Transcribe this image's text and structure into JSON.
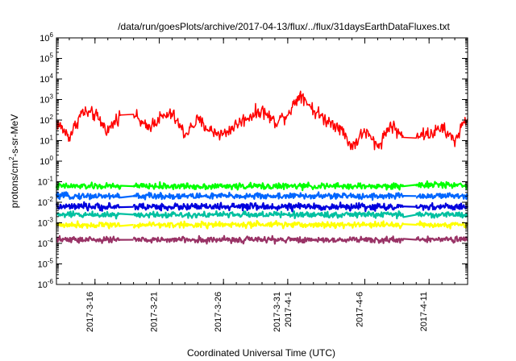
{
  "chart_data": {
    "type": "line",
    "title": "/data/run/goesPlots/archive/2017-04-13/flux/../flux/31daysEarthDataFluxes.txt",
    "xlabel": "Coordinated Universal Time (UTC)",
    "ylabel": "protons/cm²-s-sr-MeV",
    "yscale": "log",
    "ylim": [
      1e-06,
      1000000.0
    ],
    "xlim": [
      "2017-03-13",
      "2017-04-14"
    ],
    "grid": false,
    "legend": "none",
    "x_ticks": [
      {
        "date": "2017-03-16",
        "label": [
          "2017-3-16"
        ]
      },
      {
        "date": "2017-03-21",
        "label": [
          "2017-3-21"
        ]
      },
      {
        "date": "2017-03-26",
        "label": [
          "2017-3-26"
        ]
      },
      {
        "date": "2017-03-31",
        "label": [
          "2017-3-31",
          "2017-4-1"
        ]
      },
      {
        "date": "2017-04-06",
        "label": [
          "2017-4-6"
        ]
      },
      {
        "date": "2017-04-11",
        "label": [
          "2017-4-11"
        ]
      }
    ],
    "y_ticks": [
      {
        "exp": -6,
        "label": "10-6"
      },
      {
        "exp": -5,
        "label": "10-5"
      },
      {
        "exp": -4,
        "label": "10-4"
      },
      {
        "exp": -3,
        "label": "10-3"
      },
      {
        "exp": -2,
        "label": "10-2"
      },
      {
        "exp": -1,
        "label": "10-1"
      },
      {
        "exp": 0,
        "label": "100"
      },
      {
        "exp": 1,
        "label": "101"
      },
      {
        "exp": 2,
        "label": "102"
      },
      {
        "exp": 3,
        "label": "103"
      },
      {
        "exp": 4,
        "label": "104"
      },
      {
        "exp": 5,
        "label": "105"
      },
      {
        "exp": 6,
        "label": "106"
      }
    ],
    "data_gaps": [
      {
        "start": "2017-03-18",
        "end": "2017-03-19"
      },
      {
        "start": "2017-04-09",
        "end": "2017-04-10"
      }
    ],
    "series": [
      {
        "color": "#ff0000",
        "x": [
          "2017-03-13",
          "2017-03-14",
          "2017-03-15",
          "2017-03-16",
          "2017-03-17",
          "2017-03-18",
          "2017-03-19",
          "2017-03-20",
          "2017-03-21",
          "2017-03-22",
          "2017-03-23",
          "2017-03-24",
          "2017-03-25",
          "2017-03-26",
          "2017-03-27",
          "2017-03-28",
          "2017-03-29",
          "2017-03-30",
          "2017-03-31",
          "2017-04-01",
          "2017-04-02",
          "2017-04-03",
          "2017-04-04",
          "2017-04-05",
          "2017-04-06",
          "2017-04-07",
          "2017-04-08",
          "2017-04-09",
          "2017-04-10",
          "2017-04-11",
          "2017-04-12",
          "2017-04-13",
          "2017-04-14"
        ],
        "values": [
          80,
          15,
          250,
          180,
          30,
          200,
          200,
          40,
          120,
          200,
          20,
          100,
          30,
          20,
          60,
          150,
          300,
          80,
          200,
          2000,
          300,
          100,
          50,
          5,
          30,
          5,
          60,
          15,
          20,
          20,
          40,
          10,
          150
        ]
      },
      {
        "color": "#00ff00",
        "x": [
          "2017-03-13",
          "2017-03-18",
          "2017-03-19",
          "2017-04-09",
          "2017-04-10",
          "2017-04-14"
        ],
        "values": [
          0.06,
          0.06,
          0.06,
          0.06,
          0.07,
          0.07
        ]
      },
      {
        "color": "#0066ff",
        "x": [
          "2017-03-13",
          "2017-03-18",
          "2017-03-19",
          "2017-04-09",
          "2017-04-10",
          "2017-04-14"
        ],
        "values": [
          0.02,
          0.02,
          0.02,
          0.02,
          0.02,
          0.02
        ]
      },
      {
        "color": "#0000dd",
        "x": [
          "2017-03-13",
          "2017-03-18",
          "2017-03-19",
          "2017-04-09",
          "2017-04-10",
          "2017-04-14"
        ],
        "values": [
          0.006,
          0.006,
          0.006,
          0.006,
          0.006,
          0.006
        ]
      },
      {
        "color": "#00c0a0",
        "x": [
          "2017-03-13",
          "2017-03-18",
          "2017-03-19",
          "2017-04-09",
          "2017-04-10",
          "2017-04-14"
        ],
        "values": [
          0.0025,
          0.0025,
          0.0025,
          0.0025,
          0.0025,
          0.0025
        ]
      },
      {
        "color": "#ffff00",
        "x": [
          "2017-03-13",
          "2017-03-18",
          "2017-03-19",
          "2017-04-09",
          "2017-04-10",
          "2017-04-14"
        ],
        "values": [
          0.0008,
          0.0008,
          0.0008,
          0.0008,
          0.0008,
          0.0008
        ]
      },
      {
        "color": "#993366",
        "x": [
          "2017-03-13",
          "2017-03-18",
          "2017-03-19",
          "2017-04-09",
          "2017-04-10",
          "2017-04-14"
        ],
        "values": [
          0.00015,
          0.00015,
          0.00015,
          0.00015,
          0.00015,
          0.00015
        ]
      }
    ]
  }
}
